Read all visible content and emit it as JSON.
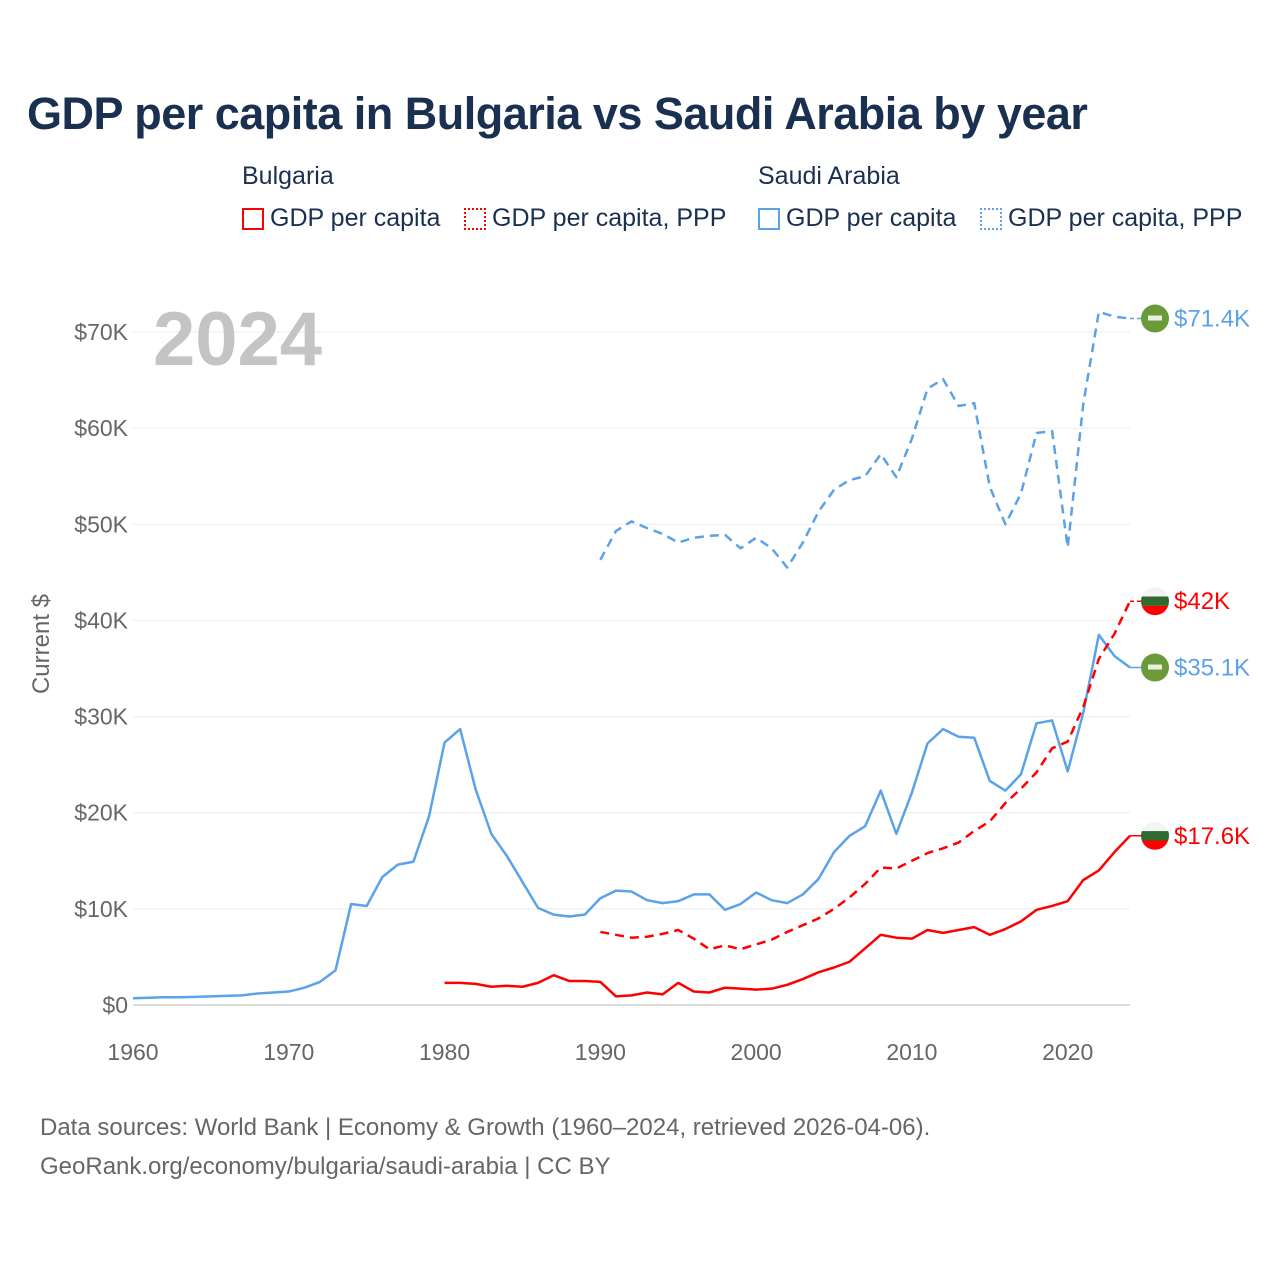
{
  "title": "GDP per capita in Bulgaria vs Saudi Arabia by year",
  "legend": {
    "groups": [
      {
        "country": "Bulgaria",
        "items": [
          {
            "label": "GDP per capita",
            "style": "solid"
          },
          {
            "label": "GDP per capita, PPP",
            "style": "dotted"
          }
        ],
        "color": "#ff0000"
      },
      {
        "country": "Saudi Arabia",
        "items": [
          {
            "label": "GDP per capita",
            "style": "solid"
          },
          {
            "label": "GDP per capita, PPP",
            "style": "dotted"
          }
        ],
        "color": "#5ba3e8"
      }
    ]
  },
  "year_overlay": "2024",
  "footer": {
    "line1": "Data sources: World Bank | Economy & Growth (1960–2024, retrieved 2026-04-06).",
    "line2": "GeoRank.org/economy/bulgaria/saudi-arabia | CC BY"
  },
  "chart_data": {
    "type": "line",
    "title": "GDP per capita in Bulgaria vs Saudi Arabia by year",
    "xlabel": "",
    "ylabel": "Current $",
    "xlim": [
      1960,
      2024
    ],
    "ylim": [
      0,
      70
    ],
    "x_ticks": [
      1960,
      1970,
      1980,
      1990,
      2000,
      2010,
      2020
    ],
    "y_ticks": [
      {
        "v": 0,
        "label": "$0"
      },
      {
        "v": 10,
        "label": "$10K"
      },
      {
        "v": 20,
        "label": "$20K"
      },
      {
        "v": 30,
        "label": "$30K"
      },
      {
        "v": 40,
        "label": "$40K"
      },
      {
        "v": 50,
        "label": "$50K"
      },
      {
        "v": 60,
        "label": "$60K"
      },
      {
        "v": 70,
        "label": "$70K"
      }
    ],
    "grid": true,
    "units": "thousand USD",
    "series": [
      {
        "name": "Saudi Arabia GDP per capita",
        "color": "#5ba3e8",
        "dash": false,
        "start": 1960,
        "end_label": "$35.1K",
        "flag": "saudi",
        "values": [
          0.7,
          0.75,
          0.8,
          0.8,
          0.85,
          0.9,
          0.95,
          1.0,
          1.2,
          1.3,
          1.4,
          1.8,
          2.4,
          3.6,
          10.5,
          10.3,
          13.3,
          14.6,
          14.9,
          19.6,
          27.3,
          28.7,
          22.4,
          17.8,
          15.5,
          12.8,
          10.1,
          9.4,
          9.2,
          9.4,
          11.1,
          11.9,
          11.8,
          10.9,
          10.6,
          10.8,
          11.5,
          11.5,
          9.9,
          10.5,
          11.7,
          10.9,
          10.6,
          11.5,
          13.1,
          15.9,
          17.6,
          18.6,
          22.3,
          17.8,
          22.1,
          27.2,
          28.7,
          27.9,
          27.8,
          23.3,
          22.3,
          24.0,
          29.3,
          29.6,
          24.3,
          30.4,
          38.5,
          36.3,
          35.1
        ]
      },
      {
        "name": "Saudi Arabia GDP per capita, PPP",
        "color": "#5ba3e8",
        "dash": true,
        "start": 1990,
        "end_label": "$71.4K",
        "flag": "saudi",
        "values": [
          46.3,
          49.3,
          50.3,
          49.6,
          49.0,
          48.1,
          48.6,
          48.8,
          48.9,
          47.5,
          48.6,
          47.5,
          45.5,
          48.1,
          51.3,
          53.6,
          54.6,
          55.0,
          57.3,
          54.9,
          58.9,
          64.1,
          65.1,
          62.3,
          62.6,
          53.9,
          50.0,
          53.2,
          59.5,
          59.7,
          47.6,
          62.5,
          72.1,
          71.6,
          71.4
        ]
      },
      {
        "name": "Bulgaria GDP per capita",
        "color": "#ff0000",
        "dash": false,
        "start": 1980,
        "end_label": "$17.6K",
        "flag": "bulgaria",
        "values": [
          2.3,
          2.3,
          2.2,
          1.9,
          2.0,
          1.9,
          2.3,
          3.1,
          2.5,
          2.5,
          2.4,
          0.9,
          1.0,
          1.3,
          1.1,
          2.3,
          1.4,
          1.3,
          1.8,
          1.7,
          1.6,
          1.7,
          2.1,
          2.7,
          3.4,
          3.9,
          4.5,
          5.9,
          7.3,
          7.0,
          6.9,
          7.8,
          7.5,
          7.8,
          8.1,
          7.3,
          7.9,
          8.7,
          9.9,
          10.3,
          10.8,
          13.0,
          14.0,
          15.9,
          17.6
        ]
      },
      {
        "name": "Bulgaria GDP per capita, PPP",
        "color": "#ff0000",
        "dash": true,
        "start": 1990,
        "end_label": "$42K",
        "flag": "bulgaria",
        "values": [
          7.6,
          7.3,
          7.0,
          7.1,
          7.4,
          7.8,
          6.9,
          5.8,
          6.2,
          5.8,
          6.3,
          6.8,
          7.6,
          8.3,
          9.0,
          10.0,
          11.2,
          12.6,
          14.3,
          14.2,
          15.0,
          15.8,
          16.3,
          16.9,
          18.1,
          19.1,
          21.0,
          22.5,
          24.2,
          26.7,
          27.4,
          31.0,
          36.0,
          38.6,
          42.0
        ]
      }
    ]
  }
}
